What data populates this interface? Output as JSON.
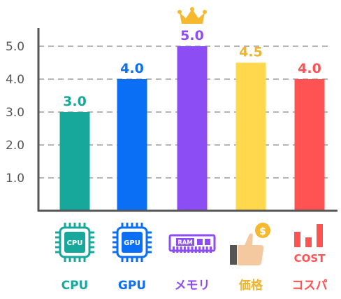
{
  "chart_data": {
    "type": "bar",
    "categories": [
      "CPU",
      "GPU",
      "メモリ",
      "価格",
      "コスパ"
    ],
    "values": [
      3.0,
      4.0,
      5.0,
      4.5,
      4.0
    ],
    "value_labels": [
      "3.0",
      "4.0",
      "5.0",
      "4.5",
      "4.0"
    ],
    "yticks": [
      "1.0",
      "2.0",
      "3.0",
      "4.0",
      "5.0"
    ],
    "ylim": [
      0,
      5.5
    ],
    "grid": true,
    "title": "",
    "xlabel": "",
    "ylabel": "",
    "colors": [
      "#18a89b",
      "#0a6ff5",
      "#8c4df5",
      "#ffd84d",
      "#ff5252"
    ],
    "label_colors": [
      "#18a89b",
      "#0a6ff5",
      "#8c4df5",
      "#f0b429",
      "#ff5252"
    ],
    "icons": [
      "cpu-chip-icon",
      "gpu-chip-icon",
      "ram-module-icon",
      "thumbs-up-coin-icon",
      "cost-bar-icon"
    ],
    "crown_on": "メモリ",
    "icon_text": {
      "cpu": "CPU",
      "gpu": "GPU",
      "ram": "RAM",
      "coin": "$",
      "cost": "COST"
    }
  }
}
